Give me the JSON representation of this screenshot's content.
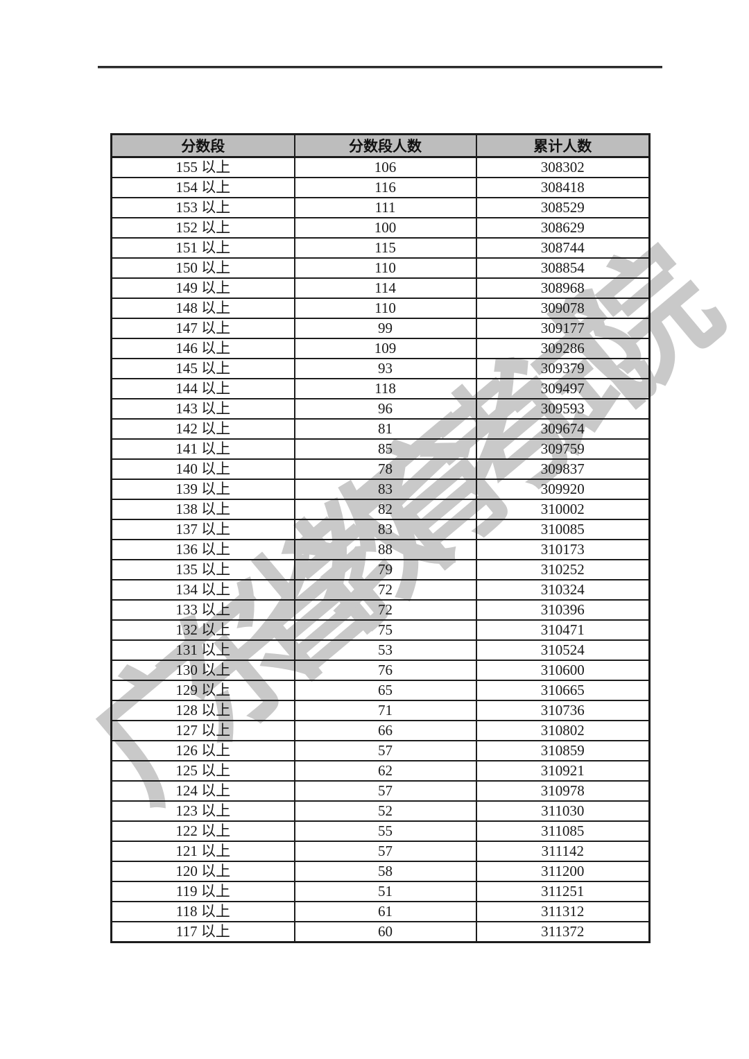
{
  "page": {
    "watermark": "广东省教育考试院"
  },
  "table": {
    "headers": [
      "分数段",
      "分数段人数",
      "累计人数"
    ],
    "rows": [
      [
        "155 以上",
        "106",
        "308302"
      ],
      [
        "154 以上",
        "116",
        "308418"
      ],
      [
        "153 以上",
        "111",
        "308529"
      ],
      [
        "152 以上",
        "100",
        "308629"
      ],
      [
        "151 以上",
        "115",
        "308744"
      ],
      [
        "150 以上",
        "110",
        "308854"
      ],
      [
        "149 以上",
        "114",
        "308968"
      ],
      [
        "148 以上",
        "110",
        "309078"
      ],
      [
        "147 以上",
        "99",
        "309177"
      ],
      [
        "146 以上",
        "109",
        "309286"
      ],
      [
        "145 以上",
        "93",
        "309379"
      ],
      [
        "144 以上",
        "118",
        "309497"
      ],
      [
        "143 以上",
        "96",
        "309593"
      ],
      [
        "142 以上",
        "81",
        "309674"
      ],
      [
        "141 以上",
        "85",
        "309759"
      ],
      [
        "140 以上",
        "78",
        "309837"
      ],
      [
        "139 以上",
        "83",
        "309920"
      ],
      [
        "138 以上",
        "82",
        "310002"
      ],
      [
        "137 以上",
        "83",
        "310085"
      ],
      [
        "136 以上",
        "88",
        "310173"
      ],
      [
        "135 以上",
        "79",
        "310252"
      ],
      [
        "134 以上",
        "72",
        "310324"
      ],
      [
        "133 以上",
        "72",
        "310396"
      ],
      [
        "132 以上",
        "75",
        "310471"
      ],
      [
        "131 以上",
        "53",
        "310524"
      ],
      [
        "130 以上",
        "76",
        "310600"
      ],
      [
        "129 以上",
        "65",
        "310665"
      ],
      [
        "128 以上",
        "71",
        "310736"
      ],
      [
        "127 以上",
        "66",
        "310802"
      ],
      [
        "126 以上",
        "57",
        "310859"
      ],
      [
        "125 以上",
        "62",
        "310921"
      ],
      [
        "124 以上",
        "57",
        "310978"
      ],
      [
        "123 以上",
        "52",
        "311030"
      ],
      [
        "122 以上",
        "55",
        "311085"
      ],
      [
        "121 以上",
        "57",
        "311142"
      ],
      [
        "120 以上",
        "58",
        "311200"
      ],
      [
        "119 以上",
        "51",
        "311251"
      ],
      [
        "118 以上",
        "61",
        "311312"
      ],
      [
        "117 以上",
        "60",
        "311372"
      ]
    ],
    "colors": {
      "header_bg": "#bdbdbd",
      "border": "#1c1c1c",
      "watermark": "#c9c9c9"
    }
  }
}
